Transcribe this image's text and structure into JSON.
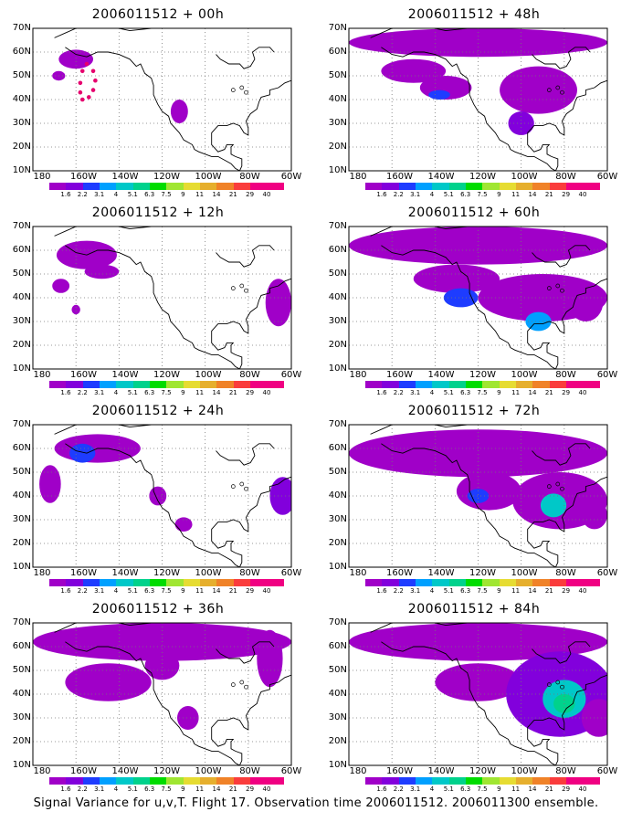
{
  "panels": [
    {
      "title": "2006011512 + 00h"
    },
    {
      "title": "2006011512 + 48h"
    },
    {
      "title": "2006011512 + 12h"
    },
    {
      "title": "2006011512 + 60h"
    },
    {
      "title": "2006011512 + 24h"
    },
    {
      "title": "2006011512 + 72h"
    },
    {
      "title": "2006011512 + 36h"
    },
    {
      "title": "2006011512 + 84h"
    }
  ],
  "y_ticks": [
    "70N",
    "60N",
    "50N",
    "40N",
    "30N",
    "20N",
    "10N"
  ],
  "x_ticks": [
    "180",
    "160W",
    "140W",
    "120W",
    "100W",
    "80W",
    "60W"
  ],
  "colorbar": {
    "labels": [
      "1.6",
      "2.2",
      "3.1",
      "4",
      "5.1",
      "6.3",
      "7.5",
      "9",
      "11",
      "14",
      "21",
      "29",
      "40"
    ],
    "colors": [
      "#a000c8",
      "#8200dc",
      "#1e3cff",
      "#00a0ff",
      "#00c8c8",
      "#00d28c",
      "#00dc00",
      "#a0e632",
      "#e6dc32",
      "#e6af2d",
      "#f08228",
      "#fa3c3c",
      "#f00082"
    ]
  },
  "footer": "Signal Variance for u,v,T. Flight 17. Observation time 2006011512. 2006011300 ensemble."
}
